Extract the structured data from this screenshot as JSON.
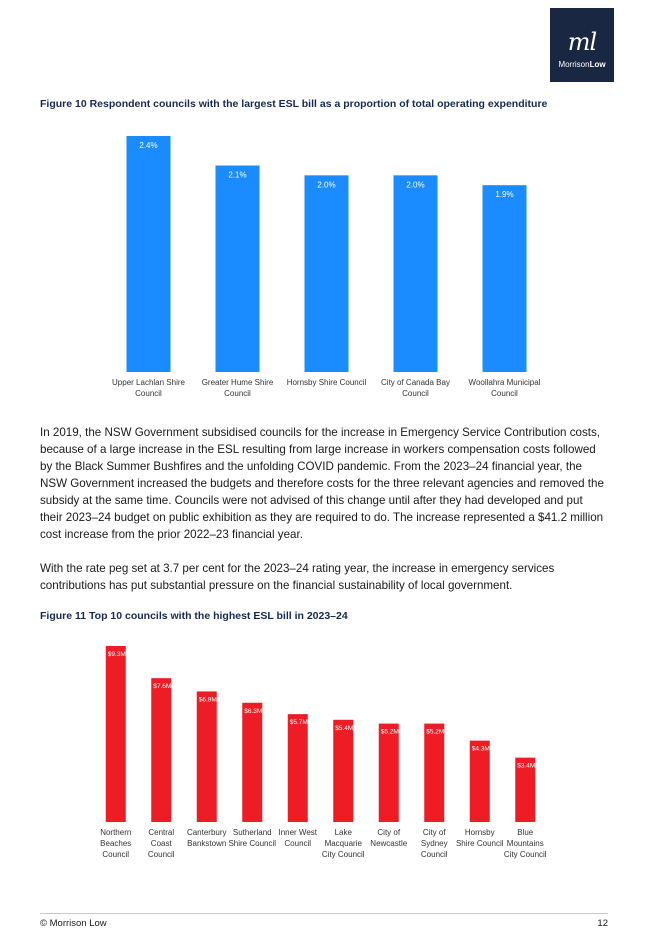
{
  "logo": {
    "mark": "ml",
    "name_part1": "Morrison",
    "name_part2": "Low"
  },
  "figure10": {
    "title": "Figure 10  Respondent councils with the largest ESL bill as a proportion of total operating expenditure"
  },
  "paragraphs": [
    "In 2019, the NSW Government subsidised councils for the increase in Emergency Service Contribution costs, because of a large increase in the ESL resulting from large increase in workers compensation costs followed by the Black Summer Bushfires and the unfolding COVID pandemic. From the 2023–24 financial year, the NSW Government increased the budgets and therefore costs for the three relevant agencies and removed the subsidy at the same time. Councils were not advised of this change until after they had developed and put their 2023–24 budget on public exhibition as they are required to do. The increase represented a $41.2 million cost increase from the prior 2022–23 financial year.",
    "With the rate peg set at 3.7 per cent for the 2023–24 rating year, the increase in emergency services contributions has put substantial pressure on the financial sustainability of local government."
  ],
  "figure11": {
    "title": "Figure 11  Top 10 councils with the highest ESL bill in 2023–24"
  },
  "chart_data": [
    {
      "type": "bar",
      "title": "",
      "categories": [
        [
          "Upper Lachlan Shire",
          "Council"
        ],
        [
          "Greater Hume Shire",
          "Council"
        ],
        [
          "Hornsby Shire Council"
        ],
        [
          "City of Canada Bay",
          "Council"
        ],
        [
          "Woollahra Municipal",
          "Council"
        ]
      ],
      "values": [
        2.4,
        2.1,
        2.0,
        2.0,
        1.9
      ],
      "labels": [
        "2.4%",
        "2.1%",
        "2.0%",
        "2.0%",
        "1.9%"
      ],
      "ylim": [
        0,
        2.4
      ],
      "color": "#1a8cff",
      "label_color": "#ffffff"
    },
    {
      "type": "bar",
      "title": "",
      "categories": [
        [
          "Northern",
          "Beaches",
          "Council"
        ],
        [
          "Central",
          "Coast",
          "Council"
        ],
        [
          "Canterbury",
          "Bankstown"
        ],
        [
          "Sutherland",
          "Shire Council"
        ],
        [
          "Inner West",
          "Council"
        ],
        [
          "Lake",
          "Macquarie",
          "City Council"
        ],
        [
          "City of",
          "Newcastle"
        ],
        [
          "City of",
          "Sydney",
          "Council"
        ],
        [
          "Hornsby",
          "Shire Council"
        ],
        [
          "Blue",
          "Mountains",
          "City Council"
        ]
      ],
      "values": [
        9.3,
        7.6,
        6.9,
        6.3,
        5.7,
        5.4,
        5.2,
        5.2,
        4.3,
        3.4
      ],
      "labels": [
        "$9.3M",
        "$7.6M",
        "$6.9M",
        "$6.3M",
        "$5.7M",
        "$5.4M",
        "$5.2M",
        "$5.2M",
        "$4.3M",
        "$3.4M"
      ],
      "ylim": [
        0,
        9.3
      ],
      "color": "#ee1c25",
      "label_color": "#ffffff"
    }
  ],
  "footer": {
    "left": "© Morrison Low",
    "page": "12"
  }
}
